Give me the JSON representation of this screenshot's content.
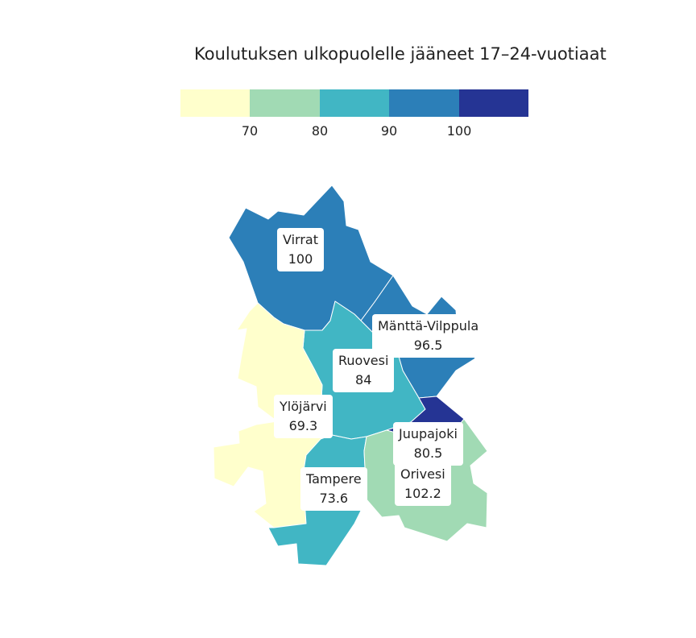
{
  "title": "Koulutuksen ulkopuolelle jääneet 17–24-vuotiaat",
  "legend": {
    "colors": [
      "#ffffcc",
      "#a1dab4",
      "#41b6c4",
      "#2c7fb8",
      "#253494"
    ],
    "thresholds": [
      "70",
      "80",
      "90",
      "100"
    ]
  },
  "regions": [
    {
      "name": "Virrat",
      "value": "100",
      "color": "#2c7fb8"
    },
    {
      "name": "Mänttä-Vilppula",
      "value": "96.5",
      "color": "#2c7fb8"
    },
    {
      "name": "Ruovesi",
      "value": "84",
      "color": "#41b6c4"
    },
    {
      "name": "Ylöjärvi",
      "value": "69.3",
      "color": "#ffffcc"
    },
    {
      "name": "Juupajoki",
      "value": "80.5",
      "color": "#41b6c4"
    },
    {
      "name": "Orivesi",
      "value": "102.2",
      "color": "#253494"
    },
    {
      "name": "Tampere",
      "value": "73.6",
      "color": "#a1dab4"
    }
  ]
}
